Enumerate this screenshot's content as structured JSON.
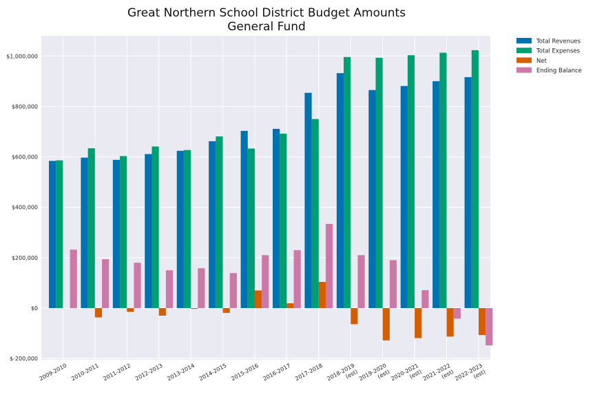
{
  "chart_data": {
    "type": "bar",
    "title_lines": [
      "Great Northern School District Budget Amounts",
      "General Fund"
    ],
    "categories": [
      [
        "2009-2010"
      ],
      [
        "2010-2011"
      ],
      [
        "2011-2012"
      ],
      [
        "2012-2013"
      ],
      [
        "2013-2014"
      ],
      [
        "2014-2015"
      ],
      [
        "2015-2016"
      ],
      [
        "2016-2017"
      ],
      [
        "2017-2018"
      ],
      [
        "2018-2019",
        "(est)"
      ],
      [
        "2019-2020",
        "(est)"
      ],
      [
        "2020-2021",
        "(est)"
      ],
      [
        "2021-2022",
        "(est)"
      ],
      [
        "2022-2023",
        "(est)"
      ]
    ],
    "series": [
      {
        "name": "Total Revenues",
        "color": "#0072b2",
        "values": [
          584000,
          597000,
          588000,
          611000,
          624000,
          662000,
          703000,
          711000,
          854000,
          932000,
          865000,
          881000,
          900000,
          916000
        ]
      },
      {
        "name": "Total Expenses",
        "color": "#009e73",
        "values": [
          586000,
          634000,
          603000,
          641000,
          627000,
          681000,
          633000,
          692000,
          750000,
          996000,
          993000,
          1003000,
          1013000,
          1023000
        ]
      },
      {
        "name": "Net",
        "color": "#d55e00",
        "values": [
          null,
          -37000,
          -15000,
          -30000,
          -3000,
          -19000,
          70000,
          19000,
          104000,
          -64000,
          -128000,
          -119000,
          -113000,
          -107000
        ]
      },
      {
        "name": "Ending Balance",
        "color": "#cc79a7",
        "values": [
          232000,
          194000,
          180000,
          150000,
          158000,
          139000,
          210000,
          230000,
          334000,
          210000,
          190000,
          71000,
          -42000,
          -148000
        ]
      }
    ],
    "y_ticks": [
      -200000,
      0,
      200000,
      400000,
      600000,
      800000,
      1000000
    ],
    "y_tick_labels": [
      "$-200,000",
      "$0",
      "$200,000",
      "$400,000",
      "$600,000",
      "$800,000",
      "$1,000,000"
    ],
    "ylim": [
      -205000,
      1080000
    ],
    "grid": true,
    "legend_position": "outside-top-right",
    "colors": {
      "background": "#eaeaf2",
      "grid": "#ffffff"
    }
  }
}
